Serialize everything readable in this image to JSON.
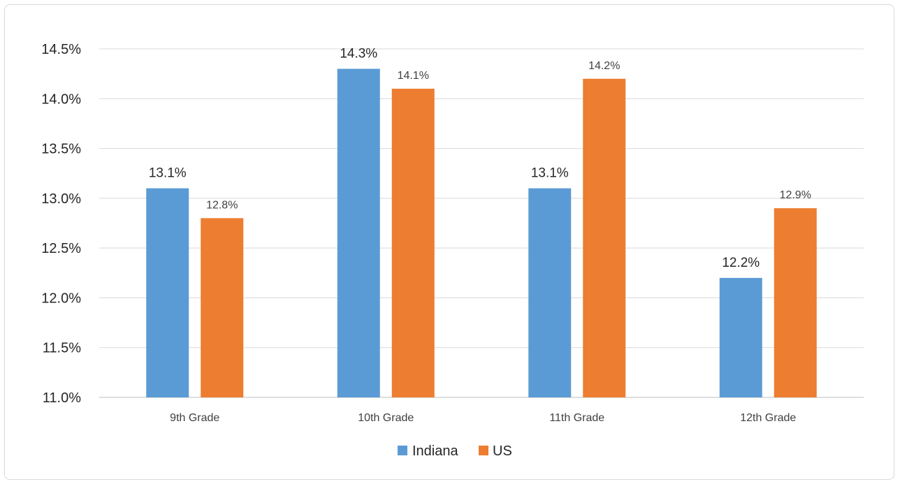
{
  "chart_data": {
    "type": "bar",
    "categories": [
      "9th Grade",
      "10th Grade",
      "11th Grade",
      "12th Grade"
    ],
    "series": [
      {
        "name": "Indiana",
        "color": "#5b9bd5",
        "values": [
          13.1,
          14.3,
          13.1,
          12.2
        ],
        "labels": [
          "13.1%",
          "14.3%",
          "13.1%",
          "12.2%"
        ]
      },
      {
        "name": "US",
        "color": "#ed7d31",
        "values": [
          12.8,
          14.1,
          14.2,
          12.9
        ],
        "labels": [
          "12.8%",
          "14.1%",
          "14.2%",
          "12.9%"
        ]
      }
    ],
    "ylim": [
      11.0,
      14.5
    ],
    "yticks": [
      11.0,
      11.5,
      12.0,
      12.5,
      13.0,
      13.5,
      14.0,
      14.5
    ],
    "ytick_labels": [
      "11.0%",
      "11.5%",
      "12.0%",
      "12.5%",
      "13.0%",
      "13.5%",
      "14.0%",
      "14.5%"
    ],
    "grid": true,
    "legend_position": "bottom",
    "title": "",
    "xlabel": "",
    "ylabel": ""
  }
}
